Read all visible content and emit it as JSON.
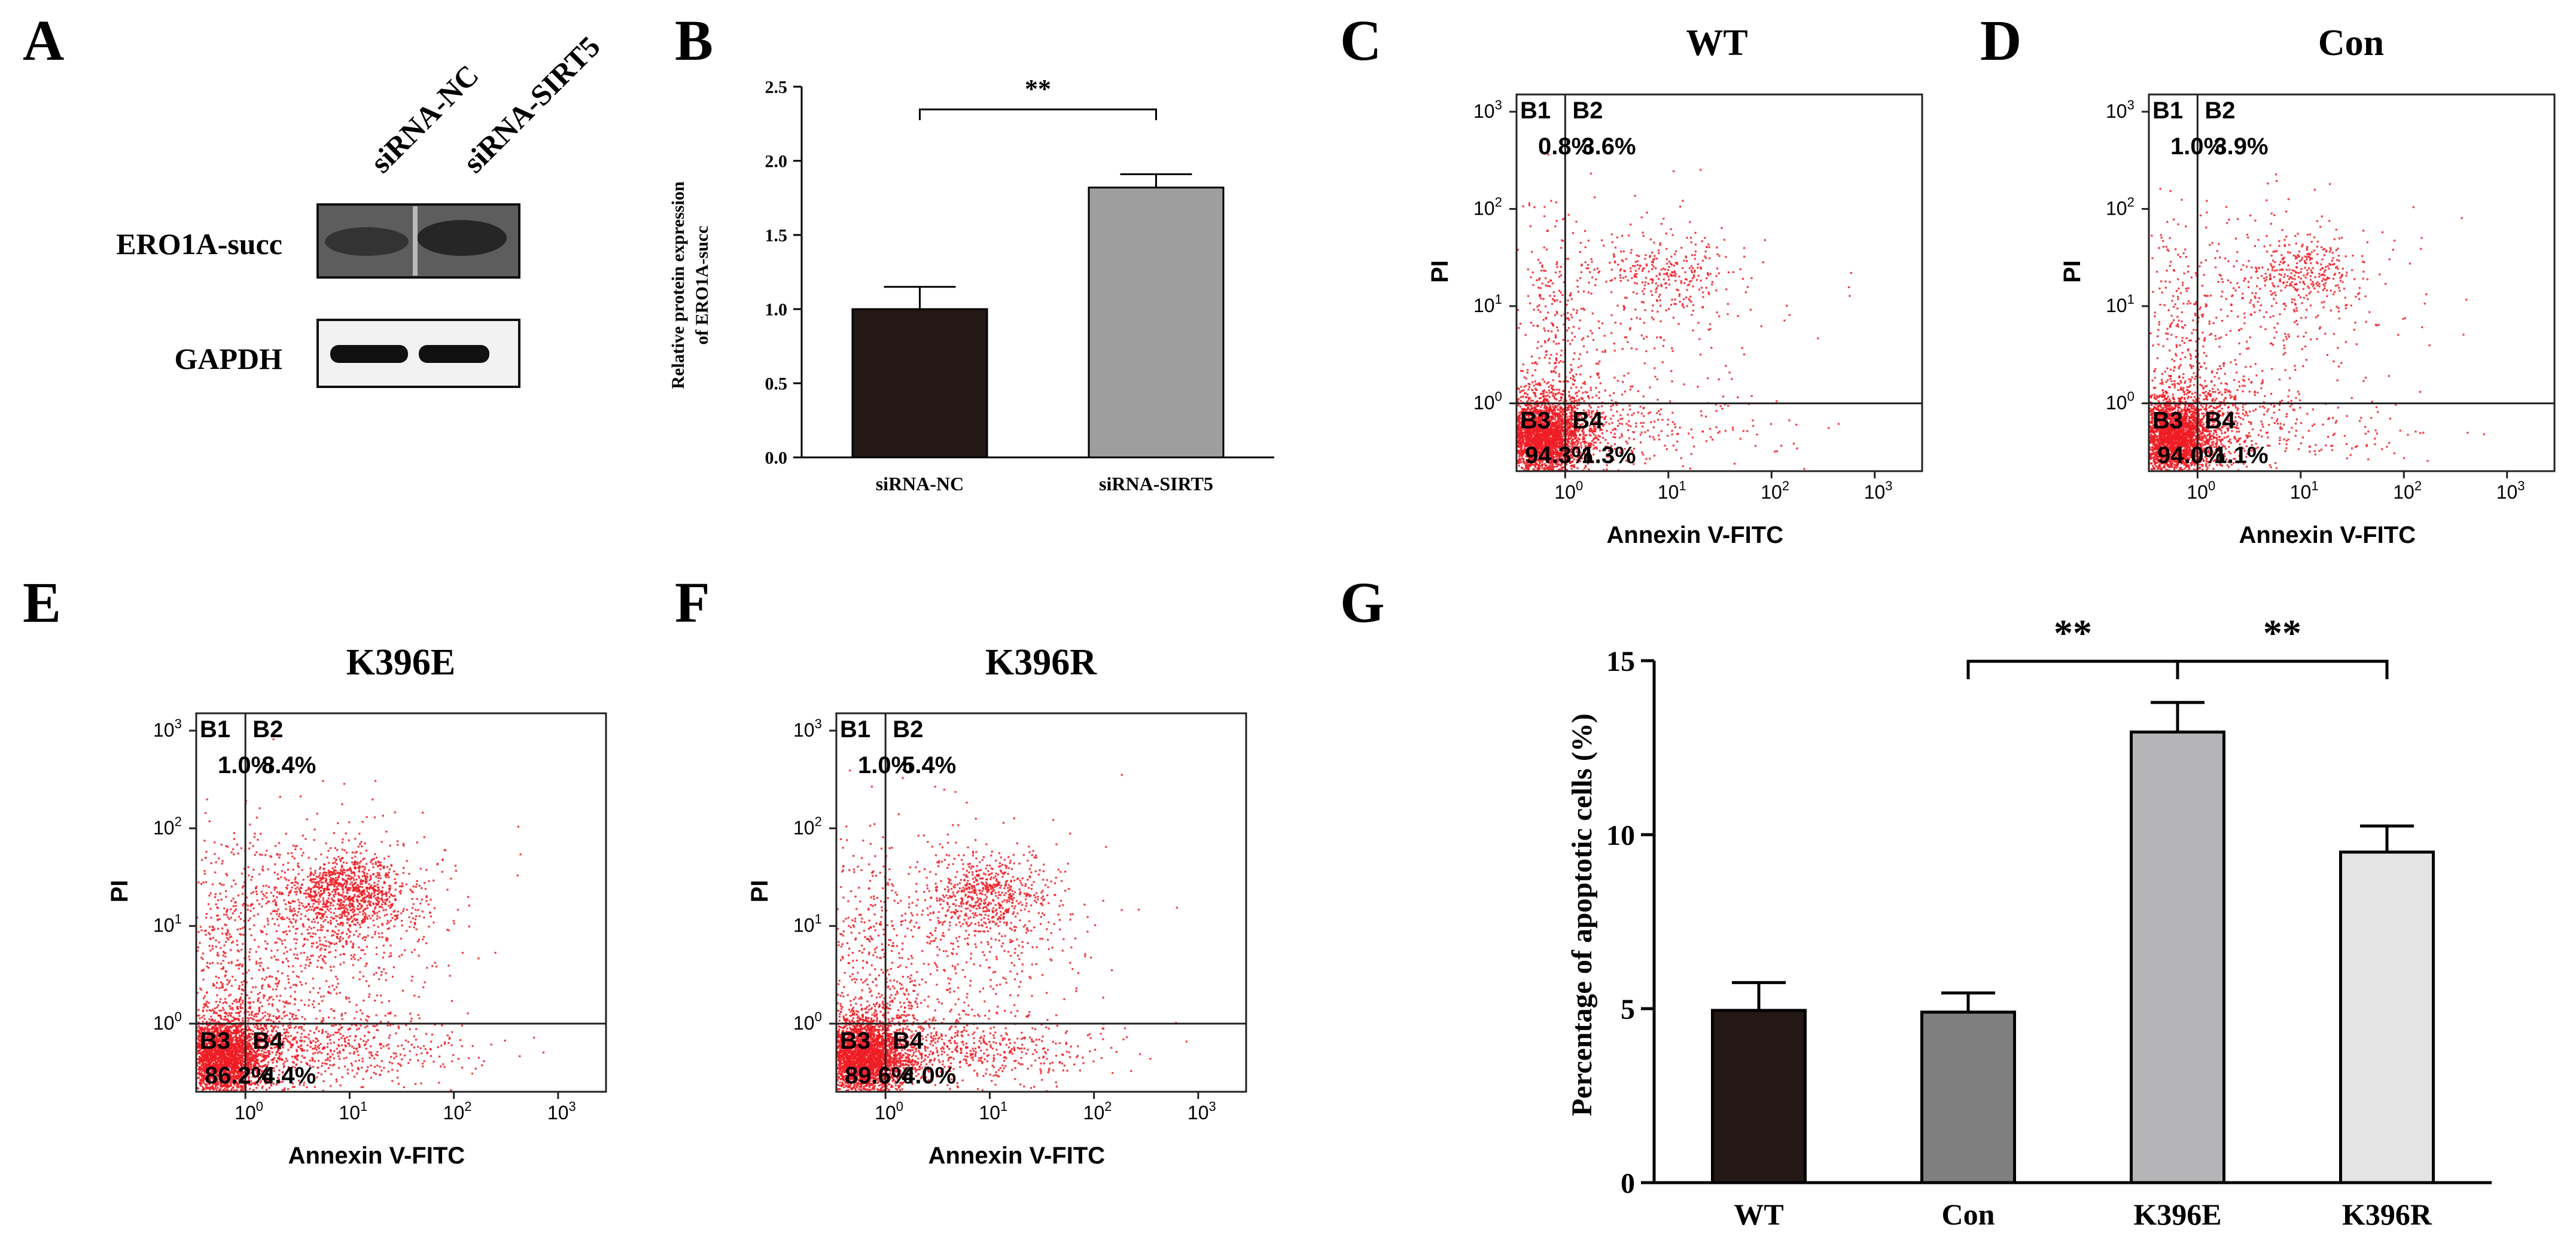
{
  "panel_labels": [
    "A",
    "B",
    "C",
    "D",
    "E",
    "F",
    "G"
  ],
  "panelA": {
    "lanes": [
      "siRNA-NC",
      "siRNA-SIRT5"
    ],
    "rows": [
      "ERO1A-succ",
      "GAPDH"
    ]
  },
  "flow_common": {
    "xlabel": "Annexin V-FITC",
    "ylabel": "PI",
    "ticks": [
      "10",
      "10",
      "10",
      "10"
    ],
    "exps": [
      "0",
      "1",
      "2",
      "3"
    ],
    "quadrants": [
      "B1",
      "B2",
      "B3",
      "B4"
    ]
  },
  "flow_plots": [
    {
      "title": "WT",
      "B1": "0.8%",
      "B2": "3.6%",
      "B3": "94.3%",
      "B4": "1.3%"
    },
    {
      "title": "Con",
      "B1": "1.0%",
      "B2": "3.9%",
      "B3": "94.0%",
      "B4": "1.1%"
    },
    {
      "title": "K396E",
      "B1": "1.0%",
      "B2": "8.4%",
      "B3": "86.2%",
      "B4": "4.4%"
    },
    {
      "title": "K396R",
      "B1": "1.0%",
      "B2": "5.4%",
      "B3": "89.6%",
      "B4": "4.0%"
    }
  ],
  "chart_data": [
    {
      "type": "bar",
      "panel": "B",
      "categories": [
        "siRNA-NC",
        "siRNA-SIRT5"
      ],
      "values": [
        1.0,
        1.82
      ],
      "errors": [
        0.15,
        0.09
      ],
      "ylabel_lines": [
        "Relative protein expression",
        "of ERO1A-succ"
      ],
      "ylim": [
        0,
        2.5
      ],
      "yticks": [
        "0.0",
        "0.5",
        "1.0",
        "1.5",
        "2.0",
        "2.5"
      ],
      "significance": [
        {
          "from": 0,
          "to": 1,
          "label": "**"
        }
      ],
      "colors": [
        "#231815",
        "#9e9e9e"
      ]
    },
    {
      "type": "bar",
      "panel": "G",
      "categories": [
        "WT",
        "Con",
        "K396E",
        "K396R"
      ],
      "values": [
        4.95,
        4.9,
        12.95,
        9.5
      ],
      "errors": [
        0.8,
        0.55,
        0.85,
        0.75
      ],
      "ylabel": "Percentage of apoptotic cells (%)",
      "ylim": [
        0,
        15
      ],
      "yticks": [
        "0",
        "5",
        "10",
        "15"
      ],
      "significance": [
        {
          "from": 1,
          "to": 2,
          "label": "**"
        },
        {
          "from": 2,
          "to": 3,
          "label": "**"
        }
      ],
      "colors": [
        "#231815",
        "#7f7f7f",
        "#b5b5b8",
        "#e3e4e3"
      ]
    }
  ]
}
